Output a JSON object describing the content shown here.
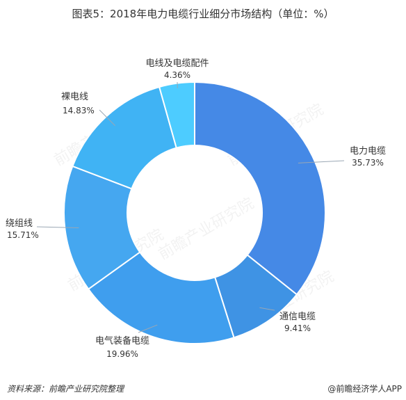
{
  "chart_data": {
    "type": "pie",
    "title": "图表5：2018年电力电缆行业细分市场结构（单位：%）",
    "categories": [
      "电力电缆",
      "通信电缆",
      "电气装备电缆",
      "绕组线",
      "裸电线",
      "电线及电缆配件"
    ],
    "values": [
      35.73,
      9.41,
      19.96,
      15.71,
      14.83,
      4.36
    ],
    "value_labels": [
      "35.73%",
      "9.41%",
      "19.96%",
      "15.71%",
      "14.83%",
      "4.36%"
    ],
    "colors": [
      "#4589E6",
      "#3F93E4",
      "#3F9EEE",
      "#45A7F0",
      "#40B3F4",
      "#4DCCFF"
    ],
    "legend": "none",
    "grid": false
  },
  "watermark": "前瞻产业研究院",
  "footer": {
    "source": "资料来源：前瞻产业研究院整理",
    "brand": "@前瞻经济学人APP"
  }
}
